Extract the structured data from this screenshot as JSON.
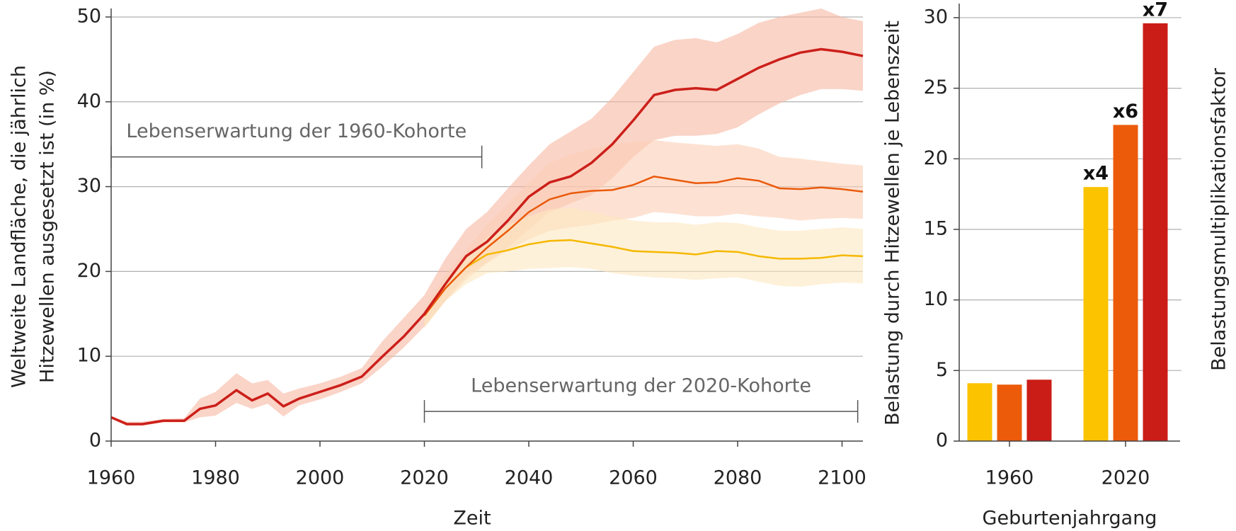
{
  "chart_data": [
    {
      "type": "line",
      "x_label": "Zeit",
      "y_label": [
        "Weltweite Landfläche, die jährlich",
        "Hitzewellen ausgesetzt ist (in %)"
      ],
      "x": [
        1960,
        1963,
        1966,
        1970,
        1974,
        1977,
        1980,
        1984,
        1987,
        1990,
        1993,
        1996,
        2000,
        2004,
        2008,
        2012,
        2016,
        2020,
        2024,
        2028,
        2032,
        2036,
        2040,
        2044,
        2048,
        2052,
        2056,
        2060,
        2064,
        2068,
        2072,
        2076,
        2080,
        2084,
        2088,
        2092,
        2096,
        2100,
        2104
      ],
      "xlim": [
        1960,
        2104
      ],
      "xticks": [
        1960,
        1980,
        2000,
        2020,
        2040,
        2060,
        2080,
        2100
      ],
      "ylim": [
        0,
        51
      ],
      "yticks": [
        0,
        10,
        20,
        30,
        40,
        50
      ],
      "grid": true,
      "series": [
        {
          "color": "#cc1f1a",
          "band_color": "#f6b8a2",
          "values": [
            2.8,
            2.0,
            2.0,
            2.4,
            2.4,
            3.8,
            4.2,
            6.0,
            4.8,
            5.6,
            4.1,
            5.0,
            5.8,
            6.6,
            7.6,
            10.0,
            12.3,
            15.0,
            18.5,
            21.8,
            23.5,
            26.0,
            28.8,
            30.5,
            31.2,
            32.8,
            35.0,
            37.8,
            40.8,
            41.4,
            41.6,
            41.4,
            42.7,
            44.0,
            45.0,
            45.8,
            46.2,
            45.9,
            45.4
          ],
          "upper": [
            2.9,
            2.3,
            2.3,
            2.6,
            2.7,
            5.0,
            5.8,
            8.0,
            6.8,
            7.2,
            5.6,
            6.2,
            6.8,
            7.6,
            8.6,
            11.8,
            14.5,
            17.2,
            21.5,
            25.0,
            27.0,
            29.8,
            32.5,
            35.0,
            36.5,
            38.0,
            40.5,
            43.5,
            46.5,
            47.3,
            47.5,
            47.0,
            48.0,
            49.3,
            50.0,
            50.5,
            51.0,
            50.0,
            49.5
          ],
          "lower": [
            2.7,
            1.8,
            1.8,
            2.2,
            2.2,
            2.8,
            3.0,
            4.5,
            3.8,
            4.4,
            2.9,
            4.2,
            4.9,
            5.8,
            6.8,
            8.8,
            11.0,
            13.5,
            16.5,
            19.5,
            21.0,
            22.8,
            25.0,
            27.0,
            28.0,
            29.0,
            31.0,
            33.5,
            35.5,
            36.0,
            36.0,
            36.2,
            37.0,
            38.5,
            39.8,
            40.8,
            41.5,
            41.5,
            41.3
          ]
        },
        {
          "color": "#ea5a0c",
          "band_color": "#fbcfb6",
          "values": [
            null,
            null,
            null,
            null,
            null,
            null,
            null,
            null,
            null,
            null,
            null,
            null,
            null,
            null,
            null,
            null,
            null,
            14.8,
            18.0,
            20.5,
            22.8,
            24.8,
            27.0,
            28.5,
            29.2,
            29.5,
            29.6,
            30.2,
            31.2,
            30.8,
            30.4,
            30.5,
            31.0,
            30.7,
            29.8,
            29.7,
            29.9,
            29.7,
            29.4
          ],
          "upper": [
            null,
            null,
            null,
            null,
            null,
            null,
            null,
            null,
            null,
            null,
            null,
            null,
            null,
            null,
            null,
            null,
            null,
            15.5,
            19.5,
            22.5,
            25.5,
            28.0,
            30.5,
            32.8,
            33.8,
            34.5,
            35.0,
            35.2,
            35.5,
            35.2,
            35.0,
            34.8,
            35.0,
            34.5,
            33.5,
            33.3,
            33.0,
            32.7,
            32.5
          ],
          "lower": [
            null,
            null,
            null,
            null,
            null,
            null,
            null,
            null,
            null,
            null,
            null,
            null,
            null,
            null,
            null,
            null,
            null,
            13.5,
            16.5,
            19.0,
            21.0,
            22.5,
            23.8,
            24.8,
            25.2,
            25.5,
            26.0,
            26.3,
            27.0,
            26.8,
            26.5,
            26.5,
            26.8,
            26.5,
            26.3,
            26.0,
            26.2,
            26.3,
            26.2
          ]
        },
        {
          "color": "#f5b800",
          "band_color": "#fde8c0",
          "values": [
            null,
            null,
            null,
            null,
            null,
            null,
            null,
            null,
            null,
            null,
            null,
            null,
            null,
            null,
            null,
            null,
            null,
            14.8,
            18.0,
            20.5,
            22.0,
            22.5,
            23.2,
            23.6,
            23.7,
            23.3,
            22.9,
            22.4,
            22.3,
            22.2,
            22.0,
            22.4,
            22.3,
            21.8,
            21.5,
            21.5,
            21.6,
            21.9,
            21.8
          ],
          "upper": [
            null,
            null,
            null,
            null,
            null,
            null,
            null,
            null,
            null,
            null,
            null,
            null,
            null,
            null,
            null,
            null,
            null,
            15.3,
            19.0,
            21.5,
            24.0,
            25.5,
            26.5,
            27.3,
            27.5,
            27.0,
            26.5,
            26.0,
            25.8,
            25.8,
            25.5,
            25.8,
            25.7,
            25.2,
            24.8,
            24.8,
            25.0,
            25.2,
            25.0
          ],
          "lower": [
            null,
            null,
            null,
            null,
            null,
            null,
            null,
            null,
            null,
            null,
            null,
            null,
            null,
            null,
            null,
            null,
            null,
            13.3,
            16.5,
            18.5,
            19.8,
            20.0,
            20.3,
            20.4,
            20.5,
            20.3,
            19.8,
            19.5,
            19.3,
            19.2,
            19.0,
            19.2,
            19.3,
            18.8,
            18.3,
            18.2,
            18.5,
            18.7,
            18.6
          ]
        }
      ],
      "annotations": [
        {
          "text": "Lebenserwartung der 1960-Kohorte",
          "x": [
            1960,
            2031
          ],
          "y": 33.5
        },
        {
          "text": "Lebenserwartung der 2020-Kohorte",
          "x": [
            2020,
            2103
          ],
          "y": 3.5
        }
      ]
    },
    {
      "type": "bar",
      "x_label": "Geburtenjahrgang",
      "y_label": "Belastung durch Hitzewellen je Lebenszeit",
      "y2_label": "Belastungsmultiplikationsfaktor",
      "categories": [
        "1960",
        "2020"
      ],
      "ylim": [
        0,
        31
      ],
      "yticks": [
        0,
        5,
        10,
        15,
        20,
        25,
        30
      ],
      "grid": true,
      "series": [
        {
          "color": "#fbc300",
          "values": [
            4.1,
            18.0
          ],
          "multiplier_labels": [
            null,
            "x4"
          ]
        },
        {
          "color": "#ec5b0a",
          "values": [
            4.0,
            22.4
          ],
          "multiplier_labels": [
            null,
            "x6"
          ]
        },
        {
          "color": "#cb1d17",
          "values": [
            4.35,
            29.6
          ],
          "multiplier_labels": [
            null,
            "x7"
          ]
        }
      ]
    }
  ]
}
